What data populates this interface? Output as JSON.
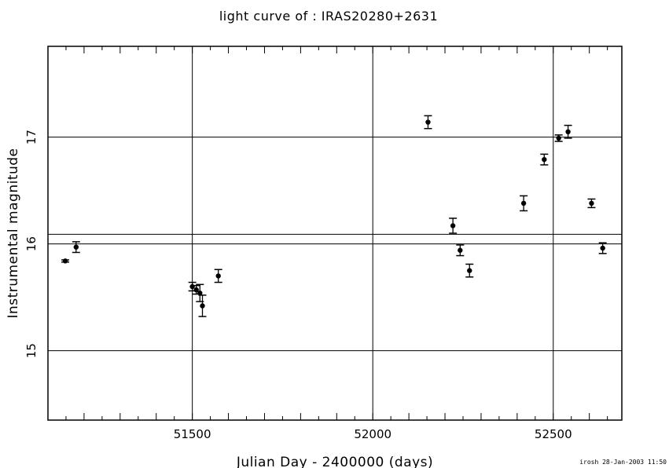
{
  "chart_data": {
    "type": "scatter",
    "title": "light curve of : IRAS20280+2631",
    "xlabel": "Julian Day - 2400000 (days)",
    "ylabel": "Instrumental magnitude",
    "xlim": [
      51100,
      52690
    ],
    "ylim": [
      17.85,
      14.35
    ],
    "y_inverted": true,
    "x_ticks": [
      51500,
      52000,
      52500
    ],
    "y_ticks": [
      15,
      16,
      17
    ],
    "x_gridlines": [
      51500,
      52000,
      52500
    ],
    "y_gridlines": [
      15,
      16,
      16.09,
      17
    ],
    "grid": true,
    "points": [
      {
        "x": 51148,
        "y": 15.84,
        "err": 0.01
      },
      {
        "x": 51178,
        "y": 15.97,
        "err": 0.05
      },
      {
        "x": 51500,
        "y": 15.6,
        "err": 0.04
      },
      {
        "x": 51511,
        "y": 15.57,
        "err": 0.04
      },
      {
        "x": 51521,
        "y": 15.54,
        "err": 0.08
      },
      {
        "x": 51528,
        "y": 15.42,
        "err": 0.1
      },
      {
        "x": 51572,
        "y": 15.7,
        "err": 0.06
      },
      {
        "x": 52153,
        "y": 17.14,
        "err": 0.06
      },
      {
        "x": 52222,
        "y": 16.17,
        "err": 0.07
      },
      {
        "x": 52242,
        "y": 15.94,
        "err": 0.05
      },
      {
        "x": 52268,
        "y": 15.75,
        "err": 0.06
      },
      {
        "x": 52418,
        "y": 16.38,
        "err": 0.07
      },
      {
        "x": 52475,
        "y": 16.79,
        "err": 0.05
      },
      {
        "x": 52515,
        "y": 16.99,
        "err": 0.03
      },
      {
        "x": 52541,
        "y": 17.05,
        "err": 0.06
      },
      {
        "x": 52606,
        "y": 16.38,
        "err": 0.04
      },
      {
        "x": 52637,
        "y": 15.96,
        "err": 0.05
      }
    ]
  },
  "footer": {
    "stamp": "irosh 28-Jan-2003 11:50"
  }
}
